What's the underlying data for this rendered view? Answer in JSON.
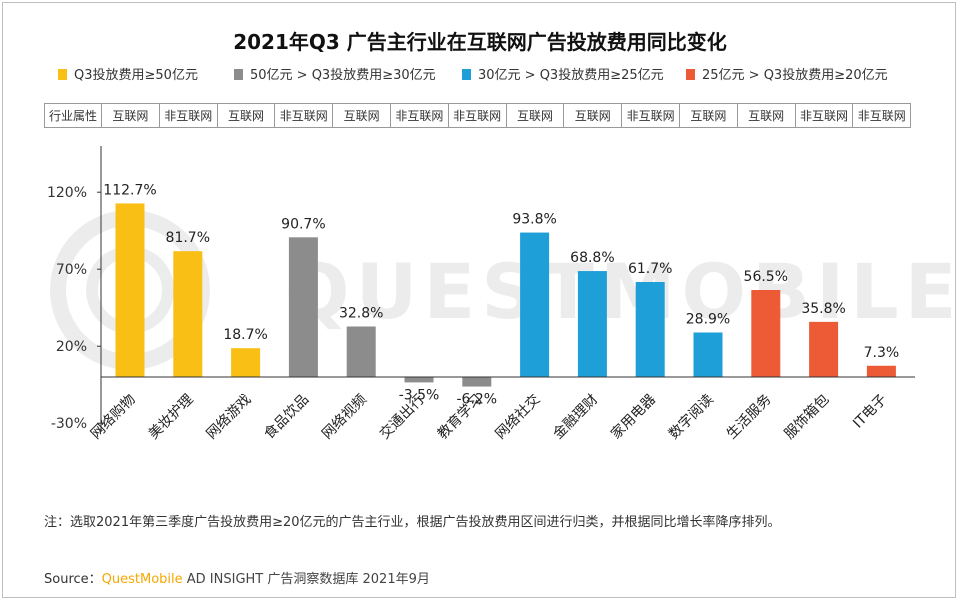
{
  "title": "2021年Q3 广告主行业在互联网广告投放费用同比变化",
  "legend": [
    {
      "label": "Q3投放费用≥50亿元",
      "color": "#f9bf14"
    },
    {
      "label": "50亿元 > Q3投放费用≥30亿元",
      "color": "#8c8c8c"
    },
    {
      "label": "30亿元 > Q3投放费用≥25亿元",
      "color": "#1f9fd8"
    },
    {
      "label": "25亿元 > Q3投放费用≥20亿元",
      "color": "#ec5a36"
    }
  ],
  "table": {
    "header": "行业属性",
    "cells": [
      "互联网",
      "非互联网",
      "互联网",
      "非互联网",
      "互联网",
      "非互联网",
      "非互联网",
      "互联网",
      "互联网",
      "非互联网",
      "互联网",
      "互联网",
      "非互联网",
      "非互联网"
    ]
  },
  "watermark": "QUESTMOBILE",
  "chart_data": {
    "type": "bar",
    "title": "2021年Q3 广告主行业在互联网广告投放费用同比变化",
    "categories": [
      "网络购物",
      "美妆护理",
      "网络游戏",
      "食品饮品",
      "网络视频",
      "交通出行",
      "教育学习",
      "网络社交",
      "金融理财",
      "家用电器",
      "数字阅读",
      "生活服务",
      "服饰箱包",
      "IT电子"
    ],
    "values": [
      112.7,
      81.7,
      18.7,
      90.7,
      32.8,
      -3.5,
      -6.2,
      93.8,
      68.8,
      61.7,
      28.9,
      56.5,
      35.8,
      7.3
    ],
    "data_labels": [
      "112.7%",
      "81.7%",
      "18.7%",
      "90.7%",
      "32.8%",
      "-3.5%",
      "-6.2%",
      "93.8%",
      "68.8%",
      "61.7%",
      "28.9%",
      "56.5%",
      "35.8%",
      "7.3%"
    ],
    "groups": [
      0,
      0,
      0,
      1,
      1,
      1,
      1,
      2,
      2,
      2,
      2,
      3,
      3,
      3
    ],
    "group_colors": [
      "#f9bf14",
      "#8c8c8c",
      "#1f9fd8",
      "#ec5a36"
    ],
    "y_ticks": [
      120,
      70,
      20,
      -30
    ],
    "y_tick_labels": [
      "120%",
      "70%",
      "20%",
      "-30%"
    ],
    "ylim": [
      -30,
      145
    ],
    "xlabel": "",
    "ylabel": "",
    "grid": false
  },
  "note": "注：选取2021年第三季度广告投放费用≥20亿元的广告主行业，根据广告投放费用区间进行归类，并根据同比增长率降序排列。",
  "source": {
    "prefix": "Source：",
    "brand": "QuestMobile",
    "suffix": " AD INSIGHT 广告洞察数据库 2021年9月"
  }
}
